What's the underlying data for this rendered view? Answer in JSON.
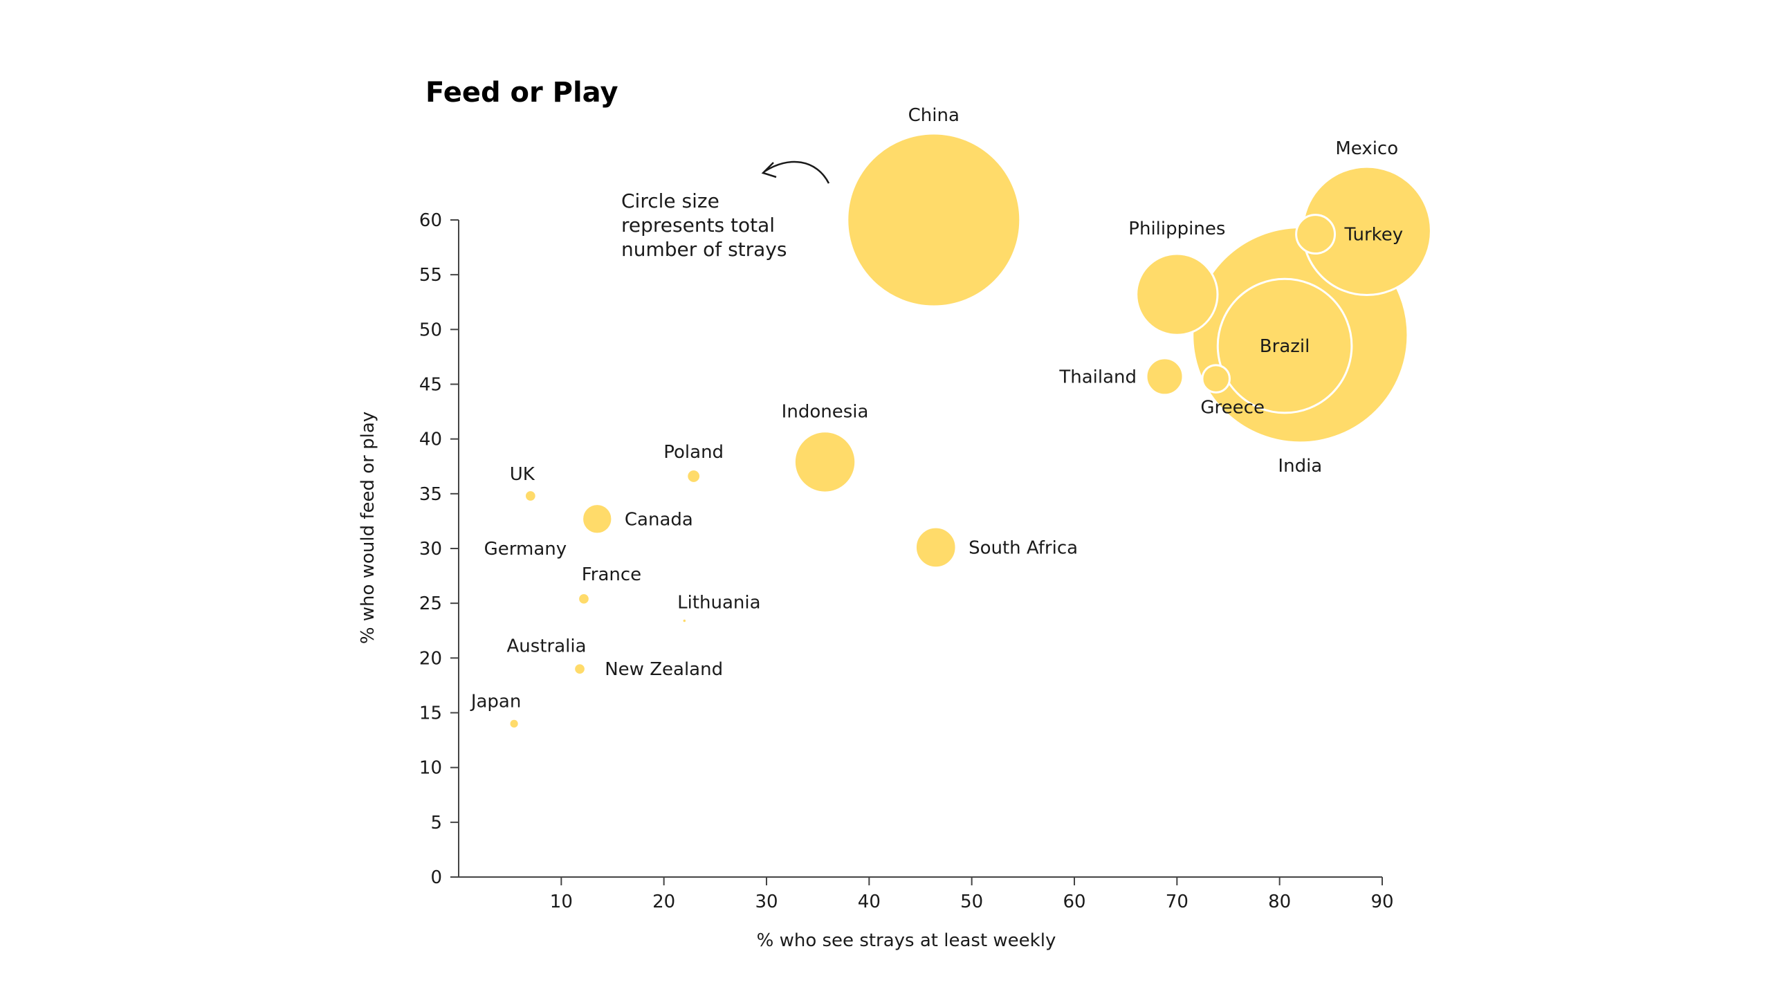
{
  "chart_data": {
    "type": "scatter",
    "title": "Feed or Play",
    "xlabel": "% who see strays at least weekly",
    "ylabel": "% who would feed or play",
    "xlim": [
      0,
      90
    ],
    "ylim": [
      0,
      60
    ],
    "xticks": [
      10,
      20,
      30,
      40,
      50,
      60,
      70,
      80,
      90
    ],
    "yticks": [
      0,
      5,
      10,
      15,
      20,
      25,
      30,
      35,
      40,
      45,
      50,
      55,
      60
    ],
    "grid": false,
    "bubble_color": "#FFDB6A",
    "outline_color": "#FFFFFF",
    "annotation": {
      "lines": [
        "Circle size",
        "represents total",
        "number of strays"
      ]
    },
    "points": [
      {
        "label": "China",
        "x": 46.3,
        "y": 60.0,
        "size": 100
      },
      {
        "label": "India",
        "x": 82.0,
        "y": 49.5,
        "size": 155
      },
      {
        "label": "Mexico",
        "x": 88.5,
        "y": 59.0,
        "size": 55
      },
      {
        "label": "Philippines",
        "x": 70.0,
        "y": 53.2,
        "size": 22
      },
      {
        "label": "Brazil",
        "x": 80.5,
        "y": 48.5,
        "size": 60
      },
      {
        "label": "Turkey",
        "x": 83.5,
        "y": 58.7,
        "size": 5
      },
      {
        "label": "Thailand",
        "x": 68.8,
        "y": 45.7,
        "size": 4.5
      },
      {
        "label": "Greece",
        "x": 73.8,
        "y": 45.5,
        "size": 2.5
      },
      {
        "label": "Indonesia",
        "x": 35.7,
        "y": 37.9,
        "size": 12.5
      },
      {
        "label": "South Africa",
        "x": 46.5,
        "y": 30.1,
        "size": 5.5
      },
      {
        "label": "Poland",
        "x": 22.9,
        "y": 36.6,
        "size": 0.45
      },
      {
        "label": "UK",
        "x": 7.0,
        "y": 34.8,
        "size": 0.3
      },
      {
        "label": "Canada",
        "x": 13.5,
        "y": 32.7,
        "size": 3
      },
      {
        "label": "Germany",
        "x": 6.5,
        "y": 30.0,
        "size": 0
      },
      {
        "label": "France",
        "x": 12.2,
        "y": 25.4,
        "size": 0.3
      },
      {
        "label": "Lithuania",
        "x": 22.0,
        "y": 23.4,
        "size": 0.02
      },
      {
        "label": "Australia",
        "x": 11.8,
        "y": 19.0,
        "size": 0.3
      },
      {
        "label": "New Zealand",
        "x": 20.0,
        "y": 19.0,
        "size": 0
      },
      {
        "label": "Japan",
        "x": 5.4,
        "y": 14.0,
        "size": 0.2
      }
    ]
  }
}
